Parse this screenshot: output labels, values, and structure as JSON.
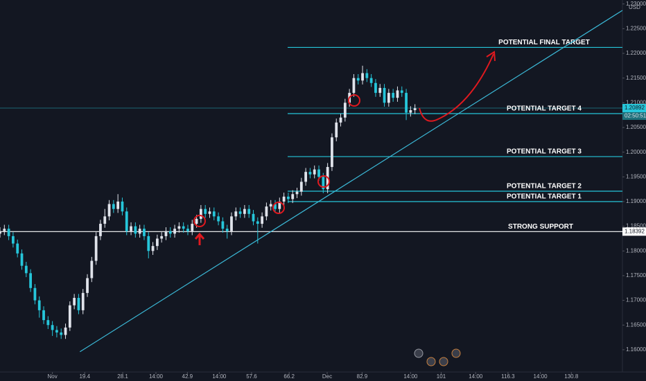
{
  "chart_data": {
    "type": "candlestick",
    "currency": "USD",
    "up_color": "#e0e3eb",
    "down_color": "#26c6da",
    "level_color": "#26c6da",
    "grid": false,
    "xlim": [
      0,
      142.5
    ],
    "ylim": [
      1.1555,
      1.2308
    ],
    "xticks": [
      {
        "value": 12,
        "label": "Nov"
      },
      19.4,
      28.1,
      {
        "value": 35.7,
        "label": "14:00"
      },
      42.9,
      {
        "value": 50.2,
        "label": "14:00"
      },
      57.6,
      66.2,
      {
        "value": 74.9,
        "label": "Dec"
      },
      82.9,
      {
        "value": 94,
        "label": "14:00"
      },
      101,
      {
        "value": 108.9,
        "label": "14:00"
      },
      116.3,
      {
        "value": 123.7,
        "label": "14:00"
      },
      130.8
    ],
    "yticks": [
      {
        "value": 1.16,
        "label": "1.16000"
      },
      {
        "value": 1.165,
        "label": "1.16500"
      },
      {
        "value": 1.17,
        "label": "1.17000"
      },
      {
        "value": 1.175,
        "label": "1.17500"
      },
      {
        "value": 1.18,
        "label": "1.18000"
      },
      {
        "value": 1.185,
        "label": "1.18500"
      },
      {
        "value": 1.19,
        "label": "1.19000"
      },
      {
        "value": 1.195,
        "label": "1.19500"
      },
      {
        "value": 1.2,
        "label": "1.20000"
      },
      {
        "value": 1.205,
        "label": "1.20500"
      },
      {
        "value": 1.21,
        "label": "1.21000"
      },
      {
        "value": 1.215,
        "label": "1.21500"
      },
      {
        "value": 1.22,
        "label": "1.22000"
      },
      {
        "value": 1.225,
        "label": "1.22500"
      },
      {
        "value": 1.23,
        "label": "1.23000"
      }
    ],
    "open": [
      1.1835,
      1.184,
      1.1845,
      1.183,
      1.1815,
      1.1795,
      1.177,
      1.1755,
      1.1725,
      1.17,
      1.168,
      1.166,
      1.165,
      1.164,
      1.1635,
      1.163,
      1.1645,
      1.169,
      1.1705,
      1.168,
      1.1715,
      1.1745,
      1.178,
      1.183,
      1.1855,
      1.187,
      1.1895,
      1.1885,
      1.19,
      1.188,
      1.184,
      1.185,
      1.1835,
      1.1845,
      1.183,
      1.18,
      1.181,
      1.1825,
      1.183,
      1.184,
      1.1835,
      1.1845,
      1.185,
      1.1845,
      1.184,
      1.1855,
      1.1865,
      1.1885,
      1.1875,
      1.188,
      1.187,
      1.186,
      1.1845,
      1.184,
      1.187,
      1.188,
      1.1875,
      1.1885,
      1.1875,
      1.186,
      1.1855,
      1.187,
      1.189,
      1.1895,
      1.1885,
      1.19,
      1.191,
      1.1905,
      1.1915,
      1.192,
      1.194,
      1.196,
      1.1955,
      1.1965,
      1.195,
      1.1925,
      1.197,
      1.203,
      1.206,
      1.207,
      1.21,
      1.212,
      1.215,
      1.2145,
      1.216,
      1.215,
      1.214,
      1.212,
      1.213,
      1.21,
      1.212,
      1.211,
      1.2125,
      1.212,
      1.208,
      1.2085
    ],
    "high": [
      1.1848,
      1.1853,
      1.1853,
      1.1838,
      1.1823,
      1.1803,
      1.1778,
      1.1763,
      1.1733,
      1.1708,
      1.1688,
      1.1668,
      1.1658,
      1.1648,
      1.1643,
      1.1653,
      1.1698,
      1.1713,
      1.1713,
      1.1723,
      1.1753,
      1.1788,
      1.1838,
      1.1863,
      1.1885,
      1.1903,
      1.1903,
      1.1915,
      1.1908,
      1.1888,
      1.1858,
      1.1858,
      1.1853,
      1.1853,
      1.1838,
      1.1818,
      1.1833,
      1.1838,
      1.1848,
      1.1848,
      1.1853,
      1.1858,
      1.1858,
      1.1853,
      1.1863,
      1.1873,
      1.1893,
      1.1893,
      1.1888,
      1.1888,
      1.1878,
      1.1868,
      1.1853,
      1.1878,
      1.1888,
      1.1888,
      1.1893,
      1.1893,
      1.1883,
      1.1868,
      1.1878,
      1.1898,
      1.1903,
      1.1903,
      1.1908,
      1.1918,
      1.1918,
      1.1923,
      1.1928,
      1.1948,
      1.1968,
      1.1968,
      1.1973,
      1.1973,
      1.1958,
      1.1978,
      1.2038,
      1.2068,
      1.2078,
      1.2108,
      1.2128,
      1.2158,
      1.2158,
      1.2175,
      1.2168,
      1.2158,
      1.2148,
      1.2138,
      1.2138,
      1.2128,
      1.2128,
      1.2133,
      1.2133,
      1.2128,
      1.2093,
      1.2097
    ],
    "low": [
      1.1827,
      1.1832,
      1.1822,
      1.1807,
      1.1787,
      1.1762,
      1.1747,
      1.1717,
      1.1692,
      1.1665,
      1.1652,
      1.1642,
      1.1628,
      1.1625,
      1.1622,
      1.1622,
      1.1638,
      1.1682,
      1.1672,
      1.1672,
      1.1707,
      1.1737,
      1.1772,
      1.1822,
      1.1847,
      1.1862,
      1.1877,
      1.1877,
      1.1872,
      1.1832,
      1.1832,
      1.1827,
      1.1827,
      1.1822,
      1.1785,
      1.1792,
      1.1802,
      1.1817,
      1.1822,
      1.1827,
      1.1827,
      1.1837,
      1.1837,
      1.1832,
      1.1832,
      1.1847,
      1.1857,
      1.1867,
      1.1867,
      1.1862,
      1.1852,
      1.1837,
      1.1825,
      1.1832,
      1.1862,
      1.1867,
      1.1867,
      1.1867,
      1.1852,
      1.1815,
      1.1847,
      1.1862,
      1.1882,
      1.1877,
      1.1877,
      1.1892,
      1.1897,
      1.1897,
      1.1907,
      1.1912,
      1.1932,
      1.1947,
      1.1947,
      1.1942,
      1.1917,
      1.1917,
      1.1962,
      1.2022,
      1.2052,
      1.2062,
      1.2092,
      1.2112,
      1.2137,
      1.2137,
      1.2142,
      1.2132,
      1.2112,
      1.2112,
      1.2092,
      1.2092,
      1.2102,
      1.2102,
      1.2112,
      1.2065,
      1.2072,
      1.2077
    ],
    "close": [
      1.184,
      1.1845,
      1.183,
      1.1815,
      1.1795,
      1.177,
      1.1755,
      1.1725,
      1.17,
      1.168,
      1.166,
      1.165,
      1.164,
      1.1635,
      1.163,
      1.1645,
      1.169,
      1.1705,
      1.168,
      1.1715,
      1.1745,
      1.178,
      1.183,
      1.1855,
      1.187,
      1.1895,
      1.1885,
      1.19,
      1.188,
      1.184,
      1.185,
      1.1835,
      1.1845,
      1.183,
      1.18,
      1.181,
      1.1825,
      1.183,
      1.184,
      1.1835,
      1.1845,
      1.185,
      1.1845,
      1.184,
      1.1855,
      1.1865,
      1.1885,
      1.1875,
      1.188,
      1.187,
      1.186,
      1.1845,
      1.184,
      1.187,
      1.188,
      1.1875,
      1.1885,
      1.1875,
      1.186,
      1.1855,
      1.187,
      1.189,
      1.1895,
      1.1885,
      1.19,
      1.191,
      1.1905,
      1.1915,
      1.192,
      1.194,
      1.196,
      1.1955,
      1.1965,
      1.195,
      1.1925,
      1.197,
      1.203,
      1.206,
      1.207,
      1.21,
      1.212,
      1.215,
      1.2145,
      1.216,
      1.215,
      1.214,
      1.212,
      1.213,
      1.21,
      1.212,
      1.211,
      1.2125,
      1.212,
      1.208,
      1.2085,
      1.2089
    ],
    "levels": [
      {
        "name": "POTENTIAL FINAL TARGET",
        "value": 1.2212
      },
      {
        "name": "POTENTIAL TARGET 4",
        "value": 1.2078
      },
      {
        "name": "POTENTIAL TARGET 3",
        "value": 1.1991
      },
      {
        "name": "POTENTIAL TARGET 2",
        "value": 1.1921
      },
      {
        "name": "POTENTIAL TARGET 1",
        "value": 1.19
      }
    ],
    "support": {
      "name": "STRONG SUPPORT",
      "value": 1.18392,
      "value_label": "1.18392"
    },
    "last_price": {
      "value": 1.20892,
      "value_label": "1.20892",
      "countdown": "02:50:51"
    },
    "trendline": {
      "x": [
        18.3,
        142.5
      ],
      "y": [
        1.1596,
        1.2287
      ]
    }
  }
}
